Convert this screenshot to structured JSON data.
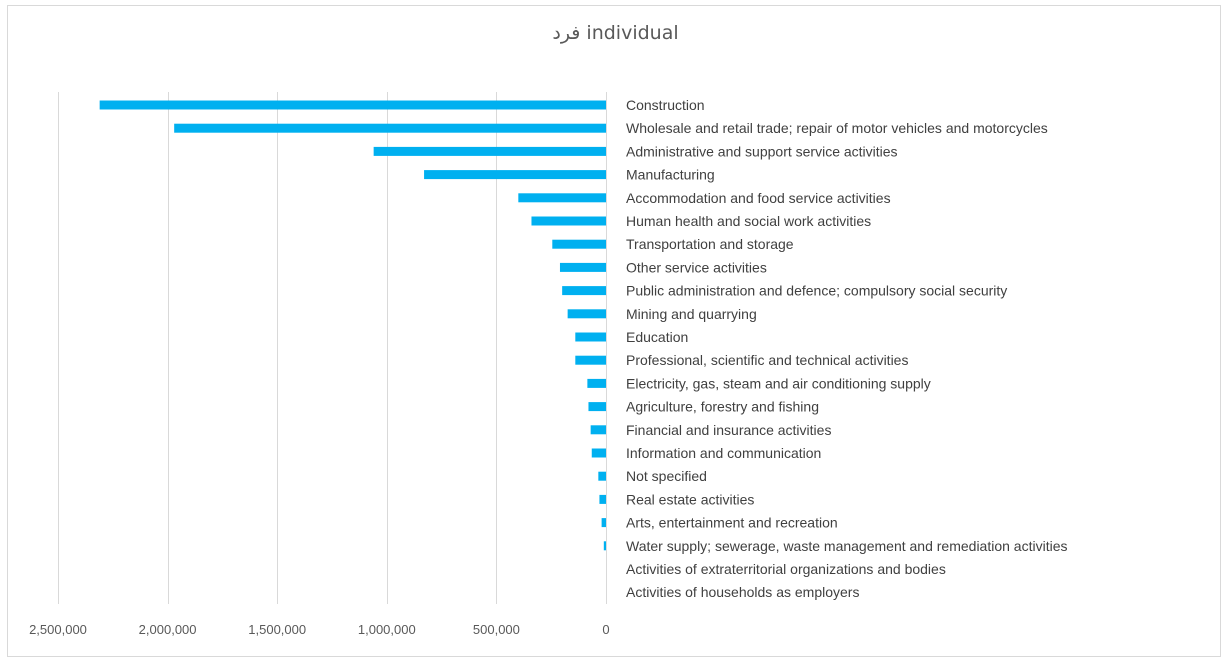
{
  "chart_data": {
    "type": "bar",
    "orientation": "horizontal",
    "title": "فرد individual",
    "x_axis": {
      "reversed": true,
      "range": [
        0,
        2500000
      ],
      "ticks": [
        0,
        500000,
        1000000,
        1500000,
        2000000,
        2500000
      ],
      "tick_labels": [
        "0",
        "500,000",
        "1,000,000",
        "1,500,000",
        "2,000,000",
        "2,500,000"
      ],
      "grid": true
    },
    "categories": [
      "Construction",
      "Wholesale and retail trade; repair of motor vehicles and motorcycles",
      "Administrative and support service activities",
      "Manufacturing",
      "Accommodation and food service activities",
      "Human health and social work activities",
      "Transportation and storage",
      "Other service activities",
      "Public administration and defence; compulsory social security",
      "Mining and quarrying",
      "Education",
      "Professional, scientific and technical activities",
      "Electricity, gas, steam and air conditioning supply",
      "Agriculture, forestry and fishing",
      "Financial and insurance activities",
      "Information and communication",
      "Not specified",
      "Real estate activities",
      "Arts, entertainment and recreation",
      "Water supply; sewerage, waste management and remediation activities",
      "Activities of extraterritorial organizations and bodies",
      "Activities of households as employers"
    ],
    "values": [
      2310000,
      1970000,
      1060000,
      830000,
      400000,
      340000,
      245000,
      210000,
      200000,
      175000,
      140000,
      140000,
      85000,
      80000,
      70000,
      65000,
      35000,
      30000,
      20000,
      10000,
      0,
      0
    ],
    "bar_color": "#00B0F0"
  }
}
